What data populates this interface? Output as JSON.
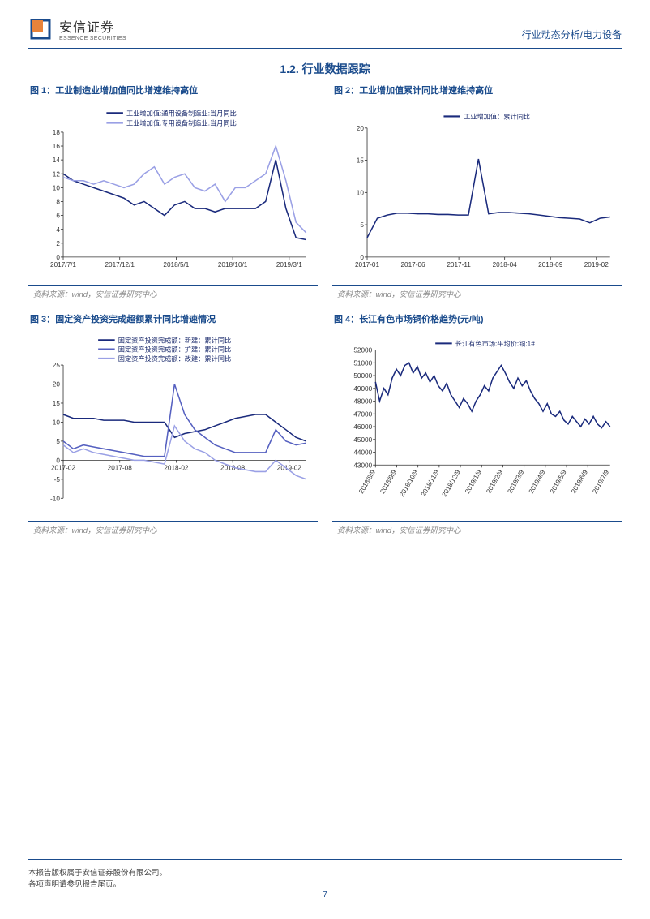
{
  "header": {
    "brand_cn": "安信证券",
    "brand_en": "ESSENCE SECURITIES",
    "doc_type": "行业动态分析/电力设备"
  },
  "section": {
    "number": "1.2.",
    "title": "行业数据跟踪"
  },
  "footer": {
    "line1": "本报告版权属于安信证券股份有限公司。",
    "line2": "各项声明请参见报告尾页。",
    "page": "7"
  },
  "chart1": {
    "title_prefix": "图 1：",
    "title": "工业制造业增加值同比增速维持高位",
    "type": "line",
    "source": "资料来源：wind，安信证券研究中心",
    "legend": [
      "工业增加值:通用设备制造业:当月同比",
      "工业增加值:专用设备制造业:当月同比"
    ],
    "x_labels": [
      "2017/7/1",
      "2017/12/1",
      "2018/5/1",
      "2018/10/1",
      "2019/3/1"
    ],
    "ylim": [
      0,
      18
    ],
    "ytick_step": 2,
    "series": [
      {
        "name": "通用",
        "color": "#1a2a7c",
        "width": 1.5,
        "values": [
          12,
          11,
          10.5,
          10,
          9.5,
          9,
          8.5,
          7.5,
          8,
          7,
          6,
          7.5,
          8,
          7,
          7,
          6.5,
          7,
          7,
          7,
          7,
          8,
          14,
          7,
          2.8,
          2.5
        ]
      },
      {
        "name": "专用",
        "color": "#9aa0e5",
        "width": 1.5,
        "values": [
          11.5,
          11,
          11,
          10.5,
          11,
          10.5,
          10,
          10.5,
          12,
          13,
          10.5,
          11.5,
          12,
          10,
          9.5,
          10.5,
          8,
          10,
          10,
          11,
          12,
          16,
          11,
          5,
          3.5
        ]
      }
    ],
    "background": "#ffffff",
    "axis_color": "#333333",
    "label_fontsize": 8
  },
  "chart2": {
    "title_prefix": "图 2：",
    "title": "工业增加值累计同比增速维持高位",
    "type": "line",
    "source": "资料来源：wind，安信证券研究中心",
    "legend": [
      "工业增加值：累计同比"
    ],
    "x_labels": [
      "2017-01",
      "2017-06",
      "2017-11",
      "2018-04",
      "2018-09",
      "2019-02"
    ],
    "ylim": [
      0,
      20
    ],
    "ytick_step": 5,
    "series": [
      {
        "name": "累计",
        "color": "#1a2a7c",
        "width": 1.5,
        "values": [
          3,
          6,
          6.5,
          6.8,
          6.8,
          6.7,
          6.7,
          6.6,
          6.6,
          6.5,
          6.5,
          15.2,
          6.7,
          6.9,
          6.9,
          6.8,
          6.7,
          6.5,
          6.3,
          6.1,
          6.0,
          5.9,
          5.3,
          6.0,
          6.2
        ]
      }
    ],
    "background": "#ffffff",
    "axis_color": "#333333",
    "label_fontsize": 8
  },
  "chart3": {
    "title_prefix": "图 3：",
    "title": "固定资产投资完成超额累计同比增速情况",
    "type": "line",
    "source": "资料来源：wind，安信证券研究中心",
    "legend": [
      "固定资产投资完成额：新建：累计同比",
      "固定资产投资完成额：扩建：累计同比",
      "固定资产投资完成额：改建：累计同比"
    ],
    "x_labels": [
      "2017-02",
      "2017-08",
      "2018-02",
      "2018-08",
      "2019-02"
    ],
    "ylim": [
      -10,
      25
    ],
    "ytick_step": 5,
    "series": [
      {
        "name": "新建",
        "color": "#1a2a7c",
        "width": 1.5,
        "values": [
          12,
          11,
          11,
          11,
          10.5,
          10.5,
          10.5,
          10,
          10,
          10,
          10,
          6,
          7,
          7.5,
          8,
          9,
          10,
          11,
          11.5,
          12,
          12,
          10,
          8,
          6,
          5
        ]
      },
      {
        "name": "扩建",
        "color": "#5560c0",
        "width": 1.5,
        "values": [
          5,
          3,
          4,
          3.5,
          3,
          2.5,
          2,
          1.5,
          1,
          1,
          1,
          20,
          12,
          8,
          6,
          4,
          3,
          2,
          2,
          2,
          2,
          8,
          5,
          4,
          4.5
        ]
      },
      {
        "name": "改建",
        "color": "#9aa0e5",
        "width": 1.5,
        "values": [
          4,
          2,
          3,
          2,
          1.5,
          1,
          0.5,
          0,
          0,
          -0.5,
          -1,
          9,
          5,
          3,
          2,
          0,
          -1,
          -2,
          -2.5,
          -3,
          -3,
          0,
          -2,
          -4,
          -5
        ]
      }
    ],
    "background": "#ffffff",
    "axis_color": "#333333",
    "label_fontsize": 8
  },
  "chart4": {
    "title_prefix": "图 4：",
    "title": "长江有色市场铜价格趋势(元/吨)",
    "type": "line",
    "source": "资料来源：wind，安信证券研究中心",
    "legend": [
      "长江有色市场:平均价:铜:1#"
    ],
    "x_labels": [
      "2018/8/9",
      "2018/9/9",
      "2018/10/9",
      "2018/11/9",
      "2018/12/9",
      "2019/1/9",
      "2019/2/9",
      "2019/3/9",
      "2019/4/9",
      "2019/5/9",
      "2019/6/9",
      "2019/7/9"
    ],
    "ylim": [
      43000,
      52000
    ],
    "ytick_step": 1000,
    "series": [
      {
        "name": "铜价",
        "color": "#1a2a7c",
        "width": 1.3,
        "values": [
          49500,
          48000,
          49000,
          48500,
          49800,
          50500,
          50000,
          50800,
          51000,
          50200,
          50700,
          49800,
          50200,
          49500,
          50000,
          49200,
          48800,
          49400,
          48500,
          48000,
          47500,
          48200,
          47800,
          47200,
          48000,
          48500,
          49200,
          48800,
          49800,
          50300,
          50800,
          50200,
          49500,
          49000,
          49800,
          49200,
          49600,
          48800,
          48200,
          47800,
          47200,
          47800,
          47000,
          46800,
          47200,
          46500,
          46200,
          46800,
          46400,
          46000,
          46600,
          46200,
          46800,
          46200,
          45900,
          46400,
          46000
        ]
      }
    ],
    "background": "#ffffff",
    "axis_color": "#333333",
    "label_fontsize": 7
  },
  "colors": {
    "brand_blue": "#1a4b8c",
    "brand_orange": "#e8833a",
    "dark_line": "#1a2a7c",
    "light_line": "#9aa0e5",
    "mid_line": "#5560c0"
  }
}
